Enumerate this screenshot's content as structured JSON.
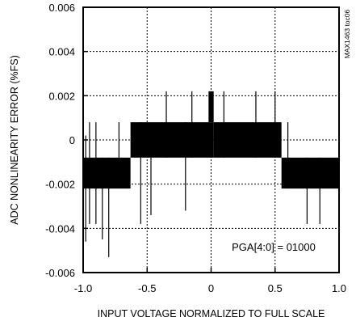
{
  "chart_data": {
    "type": "line",
    "title": "",
    "xlabel": "INPUT VOLTAGE NORMALIZED TO FULL SCALE",
    "ylabel": "ADC NONLINEARITY ERROR (%FS)",
    "xlim": [
      -1.0,
      1.0
    ],
    "ylim": [
      -0.006,
      0.006
    ],
    "x_ticks": [
      -1.0,
      -0.5,
      0,
      0.5,
      1.0
    ],
    "x_tick_labels": [
      "-1.0",
      "-0.5",
      "0",
      "0.5",
      "1.0"
    ],
    "y_ticks": [
      0.006,
      0.004,
      0.002,
      0,
      -0.002,
      -0.004,
      -0.006
    ],
    "y_tick_labels": [
      "0.006",
      "0.004",
      "0.002",
      "0",
      "-0.002",
      "-0.004",
      "-0.006"
    ],
    "grid": true,
    "annotation": "PGA[4:0] = 01000",
    "figure_id": "MAX1463 toc06",
    "series": [
      {
        "values_description": "",
        "bands": [
          {
            "x": [
              -1.0,
              -0.63
            ],
            "y": [
              -0.0022,
              -0.0008
            ]
          },
          {
            "x": [
              -0.63,
              0.02
            ],
            "y": [
              -0.0008,
              0.0008
            ]
          },
          {
            "x": [
              -0.02,
              0.02
            ],
            "y": [
              0.0008,
              0.0022
            ]
          },
          {
            "x": [
              0.02,
              0.55
            ],
            "y": [
              -0.0008,
              0.0008
            ]
          },
          {
            "x": [
              0.55,
              1.0
            ],
            "y": [
              -0.0022,
              -0.0008
            ]
          }
        ],
        "spikes": [
          {
            "x": -0.98,
            "y": [
              -0.0046,
              0.0002
            ]
          },
          {
            "x": -0.95,
            "y": [
              -0.0038,
              0.0008
            ]
          },
          {
            "x": -0.9,
            "y": [
              -0.0038,
              0.0008
            ]
          },
          {
            "x": -0.85,
            "y": [
              -0.0045,
              -0.0008
            ]
          },
          {
            "x": -0.8,
            "y": [
              -0.0053,
              -0.0008
            ]
          },
          {
            "x": -0.72,
            "y": [
              -0.0008,
              0.0008
            ]
          },
          {
            "x": -0.55,
            "y": [
              -0.0038,
              0.0008
            ]
          },
          {
            "x": -0.47,
            "y": [
              -0.0034,
              -0.0008
            ]
          },
          {
            "x": -0.35,
            "y": [
              -0.0008,
              0.0022
            ]
          },
          {
            "x": -0.2,
            "y": [
              -0.0032,
              0.0008
            ]
          },
          {
            "x": -0.15,
            "y": [
              -0.0008,
              0.0022
            ]
          },
          {
            "x": 0.1,
            "y": [
              -0.0008,
              0.0022
            ]
          },
          {
            "x": 0.35,
            "y": [
              -0.0008,
              0.0022
            ]
          },
          {
            "x": 0.5,
            "y": [
              -0.0008,
              0.0022
            ]
          },
          {
            "x": 0.6,
            "y": [
              -0.0022,
              0.0008
            ]
          },
          {
            "x": 0.75,
            "y": [
              -0.0038,
              -0.0008
            ]
          },
          {
            "x": 0.85,
            "y": [
              -0.0038,
              -0.0008
            ]
          }
        ]
      }
    ]
  },
  "colors": {
    "ink": "#000000",
    "grid": "#000000",
    "background": "#ffffff"
  }
}
